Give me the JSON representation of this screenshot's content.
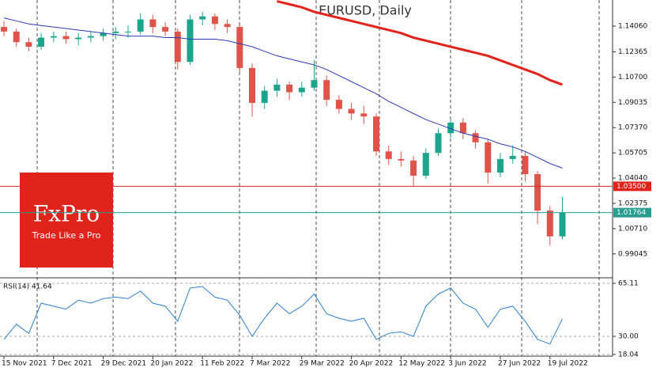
{
  "chart_data": [
    {
      "type": "candlestick",
      "title": "EURUSD, Daily",
      "categories": [
        "15 Nov 2021",
        null,
        null,
        null,
        "7 Dec 2021",
        null,
        null,
        null,
        "29 Dec 2021",
        null,
        null,
        null,
        "20 Jan 2022",
        null,
        null,
        null,
        "11 Feb 2022",
        null,
        null,
        null,
        "7 Mar 2022",
        null,
        null,
        null,
        "29 Mar 2022",
        null,
        null,
        null,
        "20 Apr 2022",
        null,
        null,
        null,
        "12 May 2022",
        null,
        null,
        null,
        "3 Jun 2022",
        null,
        null,
        null,
        "27 Jun 2022",
        null,
        null,
        null,
        "19 Jul 2022",
        null
      ],
      "open": [
        1.14,
        1.137,
        1.13,
        1.127,
        1.133,
        1.134,
        1.132,
        1.133,
        1.134,
        1.136,
        1.137,
        1.137,
        1.145,
        1.14,
        1.137,
        1.117,
        1.145,
        1.147,
        1.142,
        1.14,
        1.113,
        1.09,
        1.098,
        1.102,
        1.097,
        1.1,
        1.105,
        1.092,
        1.086,
        1.083,
        1.081,
        1.058,
        1.053,
        1.052,
        1.042,
        1.057,
        1.07,
        1.077,
        1.07,
        1.064,
        1.044,
        1.053,
        1.055,
        1.043,
        1.019,
        1.002
      ],
      "high": [
        1.144,
        1.139,
        1.133,
        1.136,
        1.137,
        1.137,
        1.136,
        1.137,
        1.139,
        1.14,
        1.141,
        1.149,
        1.148,
        1.143,
        1.139,
        1.148,
        1.15,
        1.149,
        1.145,
        1.142,
        1.116,
        1.101,
        1.106,
        1.104,
        1.104,
        1.118,
        1.108,
        1.095,
        1.09,
        1.088,
        1.083,
        1.062,
        1.058,
        1.055,
        1.06,
        1.073,
        1.079,
        1.08,
        1.072,
        1.066,
        1.057,
        1.062,
        1.058,
        1.045,
        1.022,
        1.028
      ],
      "low": [
        1.134,
        1.127,
        1.124,
        1.125,
        1.13,
        1.129,
        1.128,
        1.13,
        1.131,
        1.132,
        1.133,
        1.135,
        1.136,
        1.134,
        1.112,
        1.115,
        1.141,
        1.138,
        1.136,
        1.11,
        1.081,
        1.086,
        1.094,
        1.092,
        1.094,
        1.098,
        1.088,
        1.083,
        1.079,
        1.076,
        1.055,
        1.049,
        1.048,
        1.035,
        1.04,
        1.055,
        1.067,
        1.066,
        1.06,
        1.037,
        1.041,
        1.05,
        1.038,
        1.01,
        0.996,
        1.0
      ],
      "close": [
        1.137,
        1.13,
        1.127,
        1.133,
        1.134,
        1.132,
        1.133,
        1.134,
        1.136,
        1.137,
        1.137,
        1.145,
        1.14,
        1.137,
        1.117,
        1.145,
        1.147,
        1.142,
        1.14,
        1.113,
        1.09,
        1.098,
        1.102,
        1.097,
        1.1,
        1.105,
        1.092,
        1.086,
        1.083,
        1.081,
        1.058,
        1.053,
        1.052,
        1.042,
        1.057,
        1.07,
        1.077,
        1.07,
        1.064,
        1.044,
        1.053,
        1.055,
        1.043,
        1.019,
        1.002,
        1.0176
      ],
      "up_color": "#1aa58c",
      "down_color": "#e0524a",
      "series": [
        {
          "color": "#2b3bb8",
          "values": [
            1.146,
            1.144,
            1.142,
            1.141,
            1.14,
            1.139,
            1.138,
            1.137,
            1.136,
            1.135,
            1.134,
            1.134,
            1.134,
            1.133,
            1.133,
            1.132,
            1.132,
            1.132,
            1.131,
            1.129,
            1.127,
            1.124,
            1.121,
            1.119,
            1.117,
            1.115,
            1.112,
            1.108,
            1.104,
            1.1,
            1.096,
            1.091,
            1.087,
            1.083,
            1.079,
            1.076,
            1.073,
            1.07,
            1.068,
            1.066,
            1.063,
            1.061,
            1.058,
            1.054,
            1.05,
            1.047
          ]
        },
        {
          "color": "#e0241c",
          "values": [
            null,
            null,
            null,
            null,
            null,
            null,
            null,
            null,
            null,
            null,
            null,
            null,
            null,
            null,
            null,
            null,
            null,
            null,
            null,
            null,
            null,
            null,
            1.157,
            1.155,
            1.153,
            1.15,
            1.148,
            1.146,
            1.144,
            1.142,
            1.14,
            1.138,
            1.136,
            1.133,
            1.131,
            1.129,
            1.127,
            1.125,
            1.123,
            1.121,
            1.118,
            1.115,
            1.112,
            1.109,
            1.105,
            1.102
          ]
        }
      ],
      "hlines": [
        {
          "value": 1.035,
          "label": "1.03500",
          "color": "#e0241c"
        },
        {
          "value": 1.01764,
          "label": "1.01764",
          "color": "#2a9d8f"
        }
      ],
      "ylim": [
        0.9752,
        1.1578
      ],
      "yticks": [
        {
          "value": 1.1406,
          "label": "1.14060"
        },
        1.12365,
        {
          "value": 1.107,
          "label": "1.10700"
        },
        1.09035,
        {
          "value": 1.0737,
          "label": "1.07370"
        },
        1.05705,
        {
          "value": 1.0404,
          "label": "1.04040"
        },
        1.02375,
        {
          "value": 1.0071,
          "label": "1.00710"
        },
        0.99045
      ]
    },
    {
      "type": "line",
      "title": "RSI(14) 41.64",
      "color": "#2a7fd0",
      "values": [
        28,
        38,
        32,
        52,
        50,
        48,
        54,
        52,
        55,
        56,
        55,
        60,
        52,
        50,
        40,
        62,
        63,
        56,
        54,
        44,
        30,
        42,
        52,
        45,
        50,
        58,
        45,
        42,
        40,
        42,
        28,
        32,
        33,
        30,
        50,
        58,
        62,
        52,
        48,
        36,
        48,
        50,
        40,
        28,
        25,
        41.64
      ],
      "ylim": [
        16.9,
        68.25
      ],
      "yticks": [
        65.11,
        {
          "value": 30,
          "label": "30.00"
        },
        18.04
      ]
    }
  ],
  "logo": {
    "brand": "FxPro",
    "tagline": "Trade Like a Pro"
  }
}
